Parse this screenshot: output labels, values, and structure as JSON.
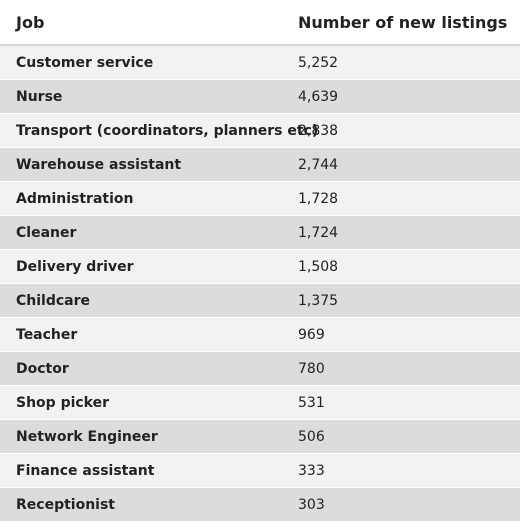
{
  "table": {
    "headers": {
      "job": "Job",
      "listings": "Number of new listings"
    },
    "rows": [
      {
        "job": "Customer service",
        "listings": "5,252"
      },
      {
        "job": "Nurse",
        "listings": "4,639"
      },
      {
        "job": "Transport (coordinators, planners etc)",
        "listings": "2,838"
      },
      {
        "job": "Warehouse assistant",
        "listings": "2,744"
      },
      {
        "job": "Administration",
        "listings": "1,728"
      },
      {
        "job": "Cleaner",
        "listings": "1,724"
      },
      {
        "job": "Delivery driver",
        "listings": "1,508"
      },
      {
        "job": "Childcare",
        "listings": "1,375"
      },
      {
        "job": "Teacher",
        "listings": "969"
      },
      {
        "job": "Doctor",
        "listings": "780"
      },
      {
        "job": "Shop picker",
        "listings": "531"
      },
      {
        "job": "Network Engineer",
        "listings": "506"
      },
      {
        "job": "Finance assistant",
        "listings": "333"
      },
      {
        "job": "Receptionist",
        "listings": "303"
      }
    ]
  }
}
